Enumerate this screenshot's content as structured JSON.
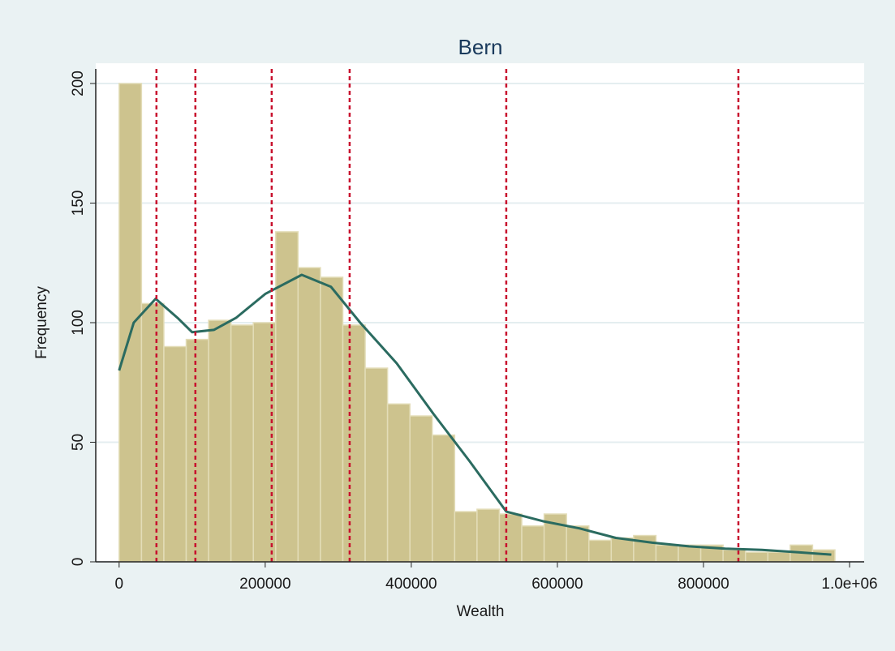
{
  "chart_data": {
    "type": "histogram",
    "title": "Bern",
    "x_label": "Wealth",
    "y_label": "Frequency",
    "bins": [
      0,
      30625,
      61250,
      91875,
      122500,
      153125,
      183750,
      214375,
      245000,
      275625,
      306250,
      336875,
      367500,
      398125,
      428750,
      459375,
      490000,
      520625,
      551250,
      581875,
      612500,
      643125,
      673750,
      704375,
      735000,
      765625,
      796250,
      826875,
      857500,
      888125,
      918750,
      949375,
      980000
    ],
    "values": [
      200,
      108,
      90,
      93,
      101,
      99,
      100,
      138,
      123,
      119,
      99,
      81,
      66,
      61,
      53,
      21,
      22,
      20,
      15,
      20,
      15,
      9,
      10,
      11,
      7,
      7,
      7,
      5,
      4,
      4,
      7,
      5
    ],
    "color": "#cdc38e",
    "density": {
      "x": [
        0,
        20000,
        50000,
        80000,
        100000,
        130000,
        160000,
        200000,
        250000,
        290000,
        330000,
        380000,
        430000,
        480000,
        530000,
        580000,
        630000,
        680000,
        730000,
        780000,
        830000,
        880000,
        930000,
        975000
      ],
      "values": [
        80,
        100,
        110,
        102,
        96,
        97,
        102,
        112,
        120,
        115,
        100,
        83,
        62,
        42,
        21,
        17,
        14,
        10,
        8,
        6.5,
        5.5,
        5,
        4,
        3
      ],
      "color": "#2b6b60"
    },
    "vlines": {
      "values": [
        51100,
        104400,
        208900,
        315600,
        530000,
        847800
      ],
      "color": "#c8102e"
    },
    "xlim": [
      -32000,
      1020000
    ],
    "ylim": [
      0,
      200
    ],
    "xticks": [
      0,
      200000,
      400000,
      600000,
      800000,
      {
        "value": 1000000,
        "label": "1.0e+06"
      }
    ],
    "yticks": [
      0,
      50,
      100,
      150,
      200
    ],
    "grid": true
  }
}
